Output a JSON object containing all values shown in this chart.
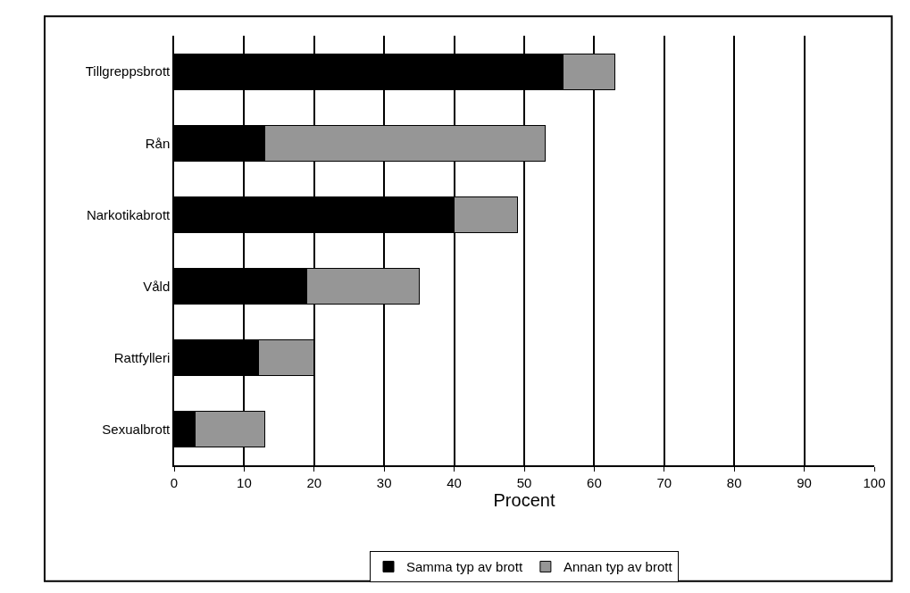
{
  "chart_data": {
    "type": "bar",
    "orientation": "horizontal",
    "stacked": true,
    "xlabel": "Procent",
    "categories": [
      "Tillgreppsbrott",
      "Rån",
      "Narkotikabrott",
      "Våld",
      "Rattfylleri",
      "Sexualbrott"
    ],
    "series": [
      {
        "name": "Samma typ av brott",
        "color": "#000000",
        "values": [
          55.5,
          13,
          40,
          19,
          12,
          3
        ]
      },
      {
        "name": "Annan typ av brott",
        "color": "#969696",
        "values": [
          7.5,
          40,
          9,
          16,
          8,
          10
        ]
      }
    ],
    "xlim": [
      0,
      100
    ],
    "xticks": [
      0,
      10,
      20,
      30,
      40,
      50,
      60,
      70,
      80,
      90,
      100
    ],
    "grid": "x",
    "legend": "bottom"
  }
}
